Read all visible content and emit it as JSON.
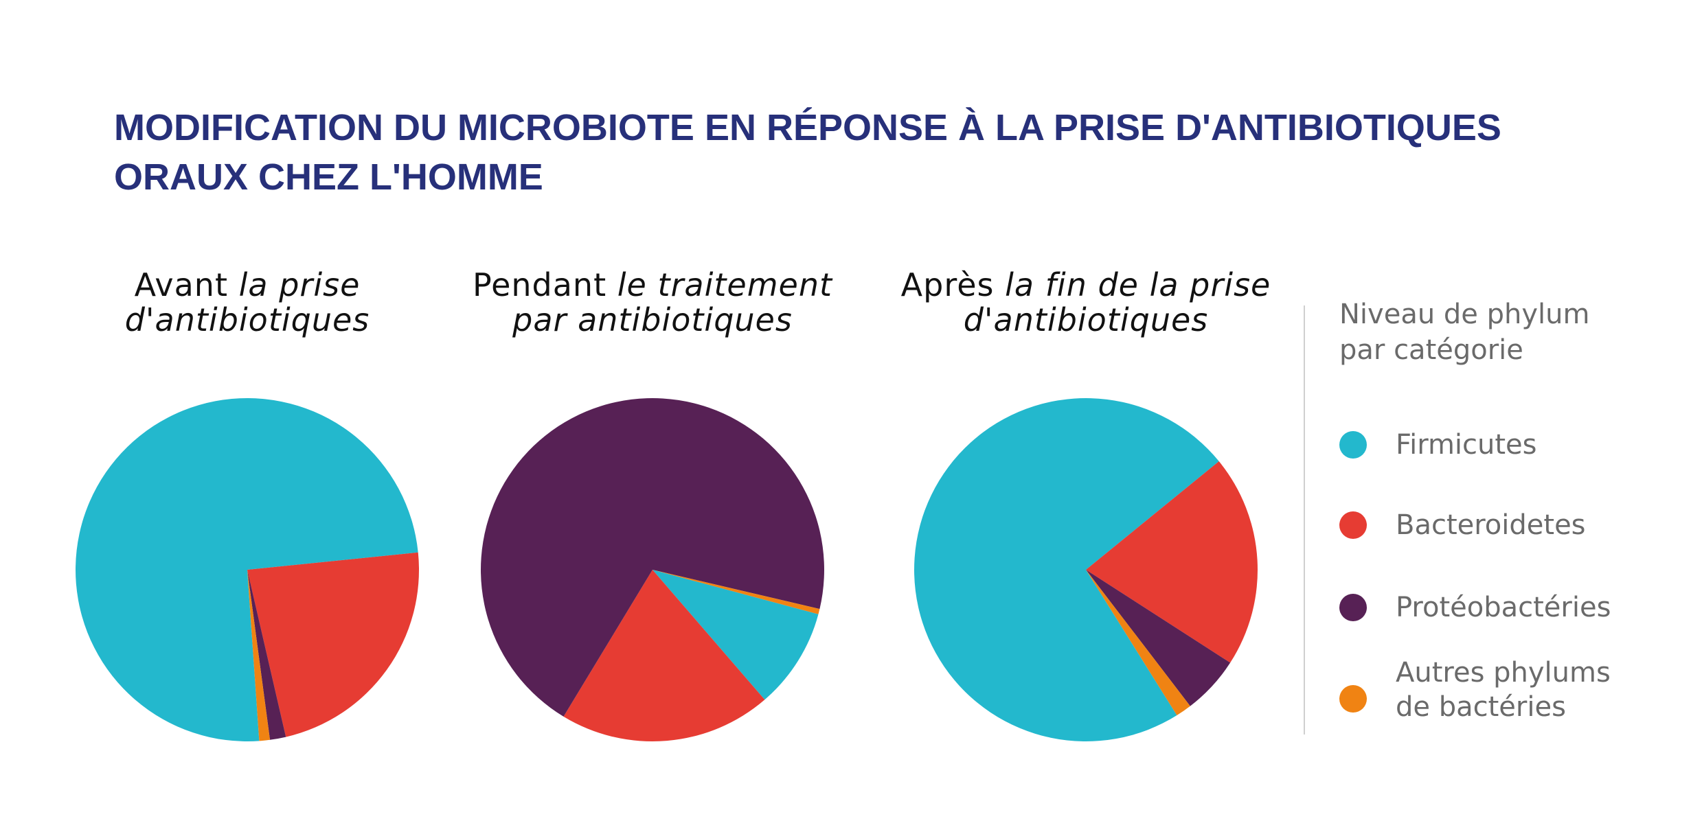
{
  "colors": {
    "firmicutes": "#23b8cd",
    "bacteroidetes": "#e63c33",
    "proteobacteries": "#572155",
    "autres": "#f08313",
    "title": "#27307a"
  },
  "chart_data": [
    {
      "type": "pie",
      "title": "Avant la prise d'antibiotiques",
      "title_parts": {
        "normal": "Avant",
        "italic1": "la prise",
        "italic2": "d'antibiotiques"
      },
      "labels": [
        "Firmicutes",
        "Bacteroidetes",
        "Protéobactéries",
        "Autres phylums de bactéries"
      ],
      "values": [
        74.5,
        23.0,
        1.5,
        1.0
      ]
    },
    {
      "type": "pie",
      "title": "Pendant le traitement par antibiotiques",
      "title_parts": {
        "normal": "Pendant",
        "italic1": "le traitement",
        "italic2": "par antibiotiques"
      },
      "labels": [
        "Firmicutes",
        "Bacteroidetes",
        "Protéobactéries",
        "Autres phylums de bactéries"
      ],
      "values": [
        9.5,
        20.0,
        70.0,
        0.5
      ]
    },
    {
      "type": "pie",
      "title": "Après la fin de la prise d'antibiotiques",
      "title_parts": {
        "normal": "Après",
        "italic1": "la fin de la prise",
        "italic2": "d'antibiotiques"
      },
      "labels": [
        "Firmicutes",
        "Bacteroidetes",
        "Protéobactéries",
        "Autres phylums de bactéries"
      ],
      "values": [
        73.0,
        20.0,
        5.5,
        1.5
      ]
    }
  ],
  "header": {
    "title_line1": "MODIFICATION DU MICROBIOTE EN RÉPONSE À LA PRISE D'ANTIBIOTIQUES",
    "title_line2": "ORAUX CHEZ L'HOMME"
  },
  "legend": {
    "title_line1": "Niveau de phylum",
    "title_line2": "par catégorie",
    "items": [
      {
        "line1": "Firmicutes",
        "line2": ""
      },
      {
        "line1": "Bacteroidetes",
        "line2": ""
      },
      {
        "line1": "Protéobactéries",
        "line2": ""
      },
      {
        "line1": "Autres phylums",
        "line2": "de bactéries"
      }
    ]
  }
}
